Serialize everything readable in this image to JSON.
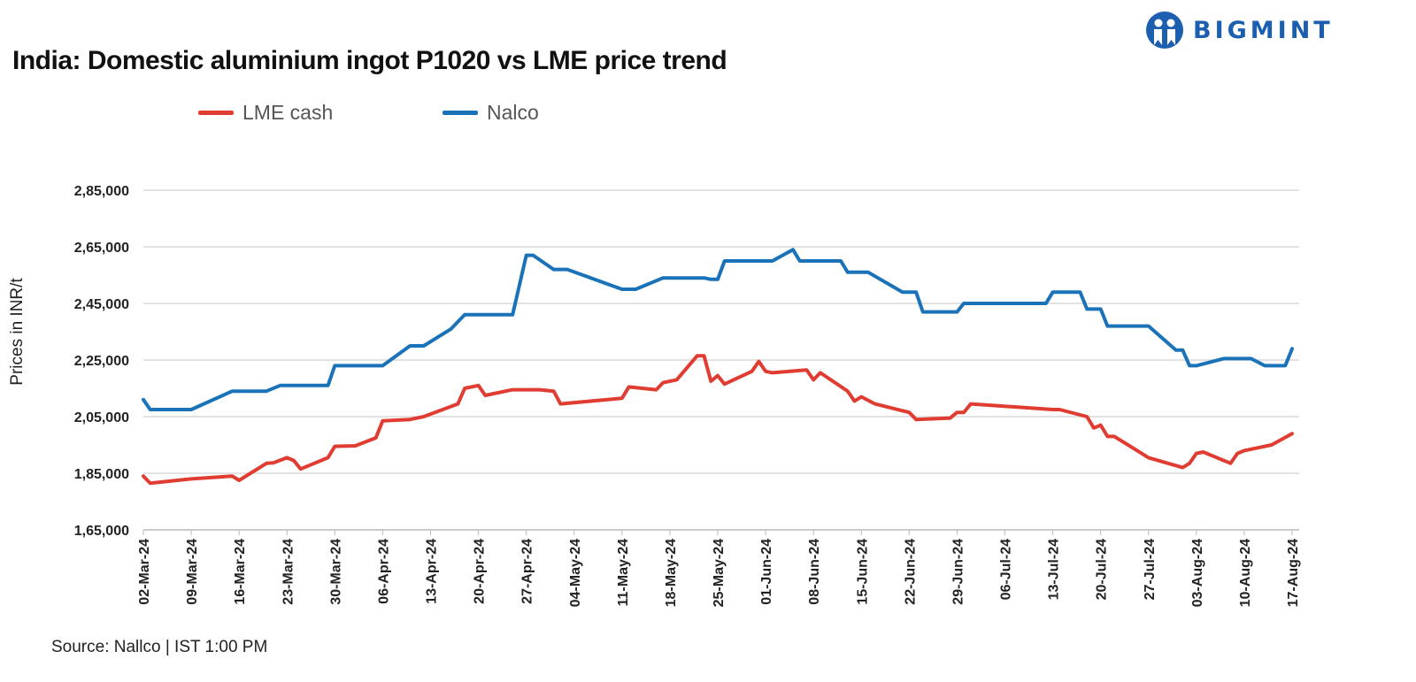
{
  "brand": {
    "name": "BIGMINT",
    "color": "#1c5fb0"
  },
  "source": "Source: Nallco | IST 1:00 PM",
  "chart_data": {
    "type": "line",
    "title": "India: Domestic aluminium ingot P1020 vs LME price trend",
    "xlabel": "",
    "ylabel": "Prices in INR/t",
    "ylim": [
      165000,
      285000
    ],
    "yticks": [
      165000,
      185000,
      205000,
      225000,
      245000,
      265000,
      285000
    ],
    "ytick_labels": [
      "1,65,000",
      "1,85,000",
      "2,05,000",
      "2,25,000",
      "2,45,000",
      "2,65,000",
      "2,85,000"
    ],
    "xlim": [
      "2024-03-02",
      "2024-08-17"
    ],
    "xtick_labels": [
      "02-Mar-24",
      "09-Mar-24",
      "16-Mar-24",
      "23-Mar-24",
      "30-Mar-24",
      "06-Apr-24",
      "13-Apr-24",
      "20-Apr-24",
      "27-Apr-24",
      "04-May-24",
      "11-May-24",
      "18-May-24",
      "25-May-24",
      "01-Jun-24",
      "08-Jun-24",
      "15-Jun-24",
      "22-Jun-24",
      "29-Jun-24",
      "06-Jul-24",
      "13-Jul-24",
      "20-Jul-24",
      "27-Jul-24",
      "03-Aug-24",
      "10-Aug-24",
      "17-Aug-24"
    ],
    "grid": true,
    "legend_position": "top-left",
    "series": [
      {
        "name": "LME cash",
        "color": "#e03c31",
        "points": [
          [
            "2024-03-02",
            184000
          ],
          [
            "2024-03-03",
            181500
          ],
          [
            "2024-03-09",
            183000
          ],
          [
            "2024-03-15",
            184000
          ],
          [
            "2024-03-16",
            182500
          ],
          [
            "2024-03-20",
            188500
          ],
          [
            "2024-03-21",
            188700
          ],
          [
            "2024-03-23",
            190500
          ],
          [
            "2024-03-24",
            189500
          ],
          [
            "2024-03-25",
            186500
          ],
          [
            "2024-03-29",
            190500
          ],
          [
            "2024-03-30",
            194500
          ],
          [
            "2024-04-02",
            194700
          ],
          [
            "2024-04-05",
            197500
          ],
          [
            "2024-04-06",
            203500
          ],
          [
            "2024-04-10",
            204000
          ],
          [
            "2024-04-12",
            205000
          ],
          [
            "2024-04-17",
            209500
          ],
          [
            "2024-04-18",
            215000
          ],
          [
            "2024-04-20",
            216000
          ],
          [
            "2024-04-21",
            212500
          ],
          [
            "2024-04-25",
            214500
          ],
          [
            "2024-04-29",
            214500
          ],
          [
            "2024-05-01",
            214000
          ],
          [
            "2024-05-02",
            209500
          ],
          [
            "2024-05-11",
            211500
          ],
          [
            "2024-05-12",
            215500
          ],
          [
            "2024-05-16",
            214500
          ],
          [
            "2024-05-17",
            217000
          ],
          [
            "2024-05-19",
            218000
          ],
          [
            "2024-05-22",
            226500
          ],
          [
            "2024-05-23",
            226500
          ],
          [
            "2024-05-24",
            217500
          ],
          [
            "2024-05-25",
            219500
          ],
          [
            "2024-05-26",
            216500
          ],
          [
            "2024-05-30",
            221000
          ],
          [
            "2024-05-31",
            224500
          ],
          [
            "2024-06-01",
            221000
          ],
          [
            "2024-06-02",
            220500
          ],
          [
            "2024-06-07",
            221500
          ],
          [
            "2024-06-08",
            218000
          ],
          [
            "2024-06-09",
            220500
          ],
          [
            "2024-06-13",
            214000
          ],
          [
            "2024-06-14",
            210500
          ],
          [
            "2024-06-15",
            212000
          ],
          [
            "2024-06-17",
            209500
          ],
          [
            "2024-06-22",
            206500
          ],
          [
            "2024-06-23",
            204000
          ],
          [
            "2024-06-28",
            204500
          ],
          [
            "2024-06-29",
            206500
          ],
          [
            "2024-06-30",
            206500
          ],
          [
            "2024-07-01",
            209500
          ],
          [
            "2024-07-13",
            207500
          ],
          [
            "2024-07-14",
            207500
          ],
          [
            "2024-07-18",
            205000
          ],
          [
            "2024-07-19",
            201000
          ],
          [
            "2024-07-20",
            202000
          ],
          [
            "2024-07-21",
            198000
          ],
          [
            "2024-07-22",
            198000
          ],
          [
            "2024-07-27",
            190500
          ],
          [
            "2024-08-01",
            187000
          ],
          [
            "2024-08-02",
            188500
          ],
          [
            "2024-08-03",
            192000
          ],
          [
            "2024-08-04",
            192500
          ],
          [
            "2024-08-08",
            188500
          ],
          [
            "2024-08-09",
            192000
          ],
          [
            "2024-08-10",
            193000
          ],
          [
            "2024-08-14",
            195000
          ],
          [
            "2024-08-17",
            199000
          ]
        ]
      },
      {
        "name": "Nalco",
        "color": "#1a73b8",
        "points": [
          [
            "2024-03-02",
            211000
          ],
          [
            "2024-03-03",
            207500
          ],
          [
            "2024-03-09",
            207500
          ],
          [
            "2024-03-15",
            214000
          ],
          [
            "2024-03-20",
            214000
          ],
          [
            "2024-03-22",
            216000
          ],
          [
            "2024-03-29",
            216000
          ],
          [
            "2024-03-30",
            223000
          ],
          [
            "2024-04-06",
            223000
          ],
          [
            "2024-04-10",
            230000
          ],
          [
            "2024-04-12",
            230000
          ],
          [
            "2024-04-16",
            236000
          ],
          [
            "2024-04-18",
            241000
          ],
          [
            "2024-04-25",
            241000
          ],
          [
            "2024-04-27",
            262000
          ],
          [
            "2024-04-28",
            262000
          ],
          [
            "2024-05-01",
            257000
          ],
          [
            "2024-05-03",
            257000
          ],
          [
            "2024-05-11",
            250000
          ],
          [
            "2024-05-13",
            250000
          ],
          [
            "2024-05-17",
            254000
          ],
          [
            "2024-05-23",
            254000
          ],
          [
            "2024-05-24",
            253500
          ],
          [
            "2024-05-25",
            253500
          ],
          [
            "2024-05-26",
            260000
          ],
          [
            "2024-06-02",
            260000
          ],
          [
            "2024-06-05",
            264000
          ],
          [
            "2024-06-06",
            260000
          ],
          [
            "2024-06-12",
            260000
          ],
          [
            "2024-06-13",
            256000
          ],
          [
            "2024-06-16",
            256000
          ],
          [
            "2024-06-21",
            249000
          ],
          [
            "2024-06-23",
            249000
          ],
          [
            "2024-06-24",
            242000
          ],
          [
            "2024-06-29",
            242000
          ],
          [
            "2024-06-30",
            245000
          ],
          [
            "2024-07-12",
            245000
          ],
          [
            "2024-07-13",
            249000
          ],
          [
            "2024-07-17",
            249000
          ],
          [
            "2024-07-18",
            243000
          ],
          [
            "2024-07-20",
            243000
          ],
          [
            "2024-07-21",
            237000
          ],
          [
            "2024-07-27",
            237000
          ],
          [
            "2024-07-31",
            228500
          ],
          [
            "2024-08-01",
            228500
          ],
          [
            "2024-08-02",
            223000
          ],
          [
            "2024-08-03",
            223000
          ],
          [
            "2024-08-07",
            225500
          ],
          [
            "2024-08-11",
            225500
          ],
          [
            "2024-08-13",
            223000
          ],
          [
            "2024-08-16",
            223000
          ],
          [
            "2024-08-17",
            229000
          ]
        ]
      }
    ]
  }
}
